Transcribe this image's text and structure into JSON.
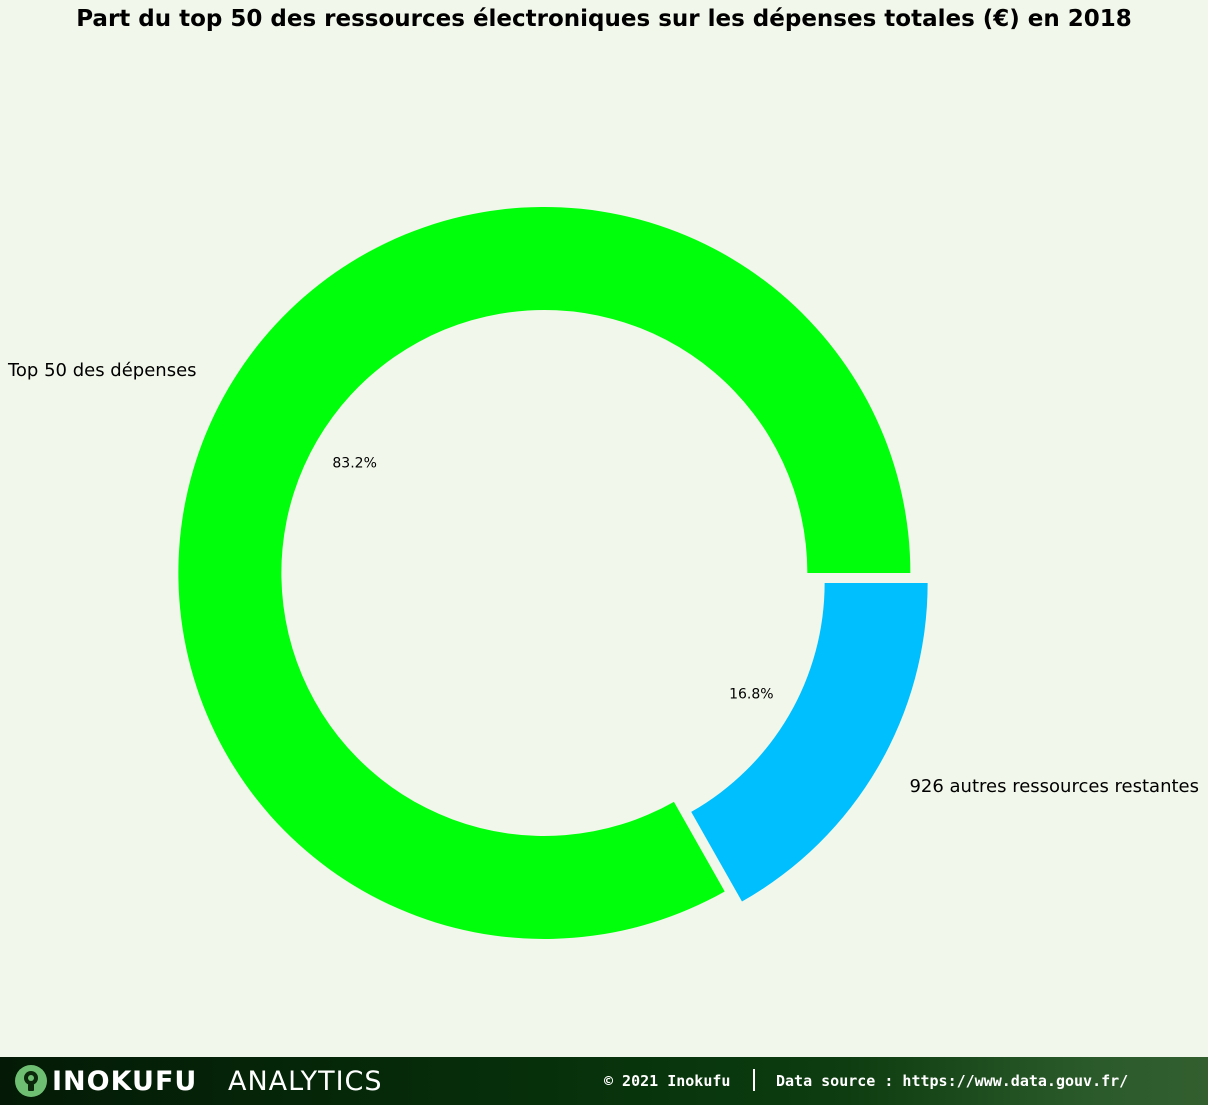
{
  "chart_data": {
    "type": "pie",
    "title": "Part du top 50 des ressources électroniques sur les dépenses totales (€) en 2018",
    "donut": true,
    "slices": [
      {
        "label": "Top 50 des dépenses",
        "value": 83.2,
        "pct_label": "83.2%",
        "color": "#00ff0a"
      },
      {
        "label": "926 autres ressources restantes",
        "value": 16.8,
        "pct_label": "16.8%",
        "color": "#00bfff"
      }
    ]
  },
  "footer": {
    "brand_name": "INOKUFU",
    "brand_suffix": "ANALYTICS",
    "copyright": "© 2021 Inokufu",
    "source": "Data source : https://www.data.gouv.fr/"
  },
  "colors": {
    "background": "#f1f7ea"
  }
}
